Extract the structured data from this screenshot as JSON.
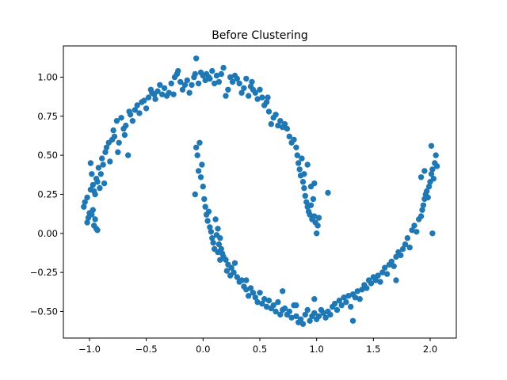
{
  "chart_data": {
    "type": "scatter",
    "title": "Before Clustering",
    "xlabel": "",
    "ylabel": "",
    "xlim": [
      -1.23,
      2.23
    ],
    "ylim": [
      -0.67,
      1.2
    ],
    "xticks": [
      {
        "value": -1.0,
        "label": "−1.0"
      },
      {
        "value": -0.5,
        "label": "−0.5"
      },
      {
        "value": 0.0,
        "label": "0.0"
      },
      {
        "value": 0.5,
        "label": "0.5"
      },
      {
        "value": 1.0,
        "label": "1.0"
      },
      {
        "value": 1.5,
        "label": "1.5"
      },
      {
        "value": 2.0,
        "label": "2.0"
      }
    ],
    "yticks": [
      {
        "value": -0.5,
        "label": "−0.50"
      },
      {
        "value": -0.25,
        "label": "−0.25"
      },
      {
        "value": 0.0,
        "label": "0.00"
      },
      {
        "value": 0.25,
        "label": "0.25"
      },
      {
        "value": 0.5,
        "label": "0.50"
      },
      {
        "value": 0.75,
        "label": "0.75"
      },
      {
        "value": 1.0,
        "label": "1.00"
      }
    ],
    "grid": false,
    "marker_color": "#1f77b4",
    "points": [
      [
        -1.05,
        0.17
      ],
      [
        -1.04,
        0.2
      ],
      [
        -1.02,
        0.23
      ],
      [
        -1.02,
        0.07
      ],
      [
        -1.01,
        0.1
      ],
      [
        -1.0,
        0.13
      ],
      [
        -0.99,
        0.28
      ],
      [
        -0.98,
        0.12
      ],
      [
        -0.97,
        0.15
      ],
      [
        -0.97,
        0.31
      ],
      [
        -0.96,
        0.27
      ],
      [
        -0.96,
        0.05
      ],
      [
        -0.95,
        0.09
      ],
      [
        -0.94,
        0.03
      ],
      [
        -0.93,
        0.02
      ],
      [
        -0.95,
        0.25
      ],
      [
        -0.98,
        0.38
      ],
      [
        -0.99,
        0.45
      ],
      [
        -0.94,
        0.35
      ],
      [
        -0.93,
        0.33
      ],
      [
        -0.92,
        0.42
      ],
      [
        -0.91,
        0.29
      ],
      [
        -0.9,
        0.38
      ],
      [
        -0.89,
        0.48
      ],
      [
        -0.88,
        0.44
      ],
      [
        -0.87,
        0.32
      ],
      [
        -0.86,
        0.52
      ],
      [
        -0.85,
        0.55
      ],
      [
        -0.83,
        0.58
      ],
      [
        -0.82,
        0.46
      ],
      [
        -0.8,
        0.6
      ],
      [
        -0.79,
        0.66
      ],
      [
        -0.78,
        0.62
      ],
      [
        -0.76,
        0.72
      ],
      [
        -0.75,
        0.52
      ],
      [
        -0.74,
        0.58
      ],
      [
        -0.72,
        0.74
      ],
      [
        -0.7,
        0.67
      ],
      [
        -0.69,
        0.63
      ],
      [
        -0.68,
        0.69
      ],
      [
        -0.66,
        0.5
      ],
      [
        -0.65,
        0.78
      ],
      [
        -0.64,
        0.76
      ],
      [
        -0.62,
        0.72
      ],
      [
        -0.6,
        0.79
      ],
      [
        -0.58,
        0.82
      ],
      [
        -0.56,
        0.77
      ],
      [
        -0.54,
        0.84
      ],
      [
        -0.52,
        0.85
      ],
      [
        -0.5,
        0.8
      ],
      [
        -0.48,
        0.87
      ],
      [
        -0.46,
        0.92
      ],
      [
        -0.45,
        0.9
      ],
      [
        -0.43,
        0.89
      ],
      [
        -0.42,
        0.86
      ],
      [
        -0.4,
        0.91
      ],
      [
        -0.38,
        0.95
      ],
      [
        -0.36,
        0.89
      ],
      [
        -0.34,
        0.93
      ],
      [
        -0.32,
        0.88
      ],
      [
        -0.3,
        0.9
      ],
      [
        -0.28,
        0.96
      ],
      [
        -0.26,
        0.89
      ],
      [
        -0.25,
        1.0
      ],
      [
        -0.23,
        1.02
      ],
      [
        -0.22,
        1.04
      ],
      [
        -0.2,
        0.97
      ],
      [
        -0.18,
        0.92
      ],
      [
        -0.16,
        0.95
      ],
      [
        -0.14,
        0.98
      ],
      [
        -0.12,
        0.9
      ],
      [
        -0.1,
        0.95
      ],
      [
        -0.08,
        1.0
      ],
      [
        -0.07,
        1.02
      ],
      [
        -0.06,
        1.12
      ],
      [
        -0.04,
        0.96
      ],
      [
        -0.02,
        1.03
      ],
      [
        0.0,
        1.01
      ],
      [
        0.02,
        0.98
      ],
      [
        0.03,
        1.02
      ],
      [
        0.05,
        1.0
      ],
      [
        0.06,
        0.99
      ],
      [
        0.08,
        1.04
      ],
      [
        0.1,
        0.96
      ],
      [
        0.12,
        1.01
      ],
      [
        0.14,
        0.97
      ],
      [
        0.16,
        1.02
      ],
      [
        0.18,
        1.06
      ],
      [
        0.2,
        0.88
      ],
      [
        0.22,
        0.92
      ],
      [
        0.24,
        1.0
      ],
      [
        0.26,
        0.97
      ],
      [
        0.28,
        1.01
      ],
      [
        0.3,
        0.99
      ],
      [
        0.32,
        0.96
      ],
      [
        0.34,
        0.9
      ],
      [
        0.36,
        0.93
      ],
      [
        0.38,
        0.99
      ],
      [
        0.4,
        0.88
      ],
      [
        0.42,
        0.94
      ],
      [
        0.44,
        0.92
      ],
      [
        0.46,
        0.9
      ],
      [
        0.48,
        0.86
      ],
      [
        0.5,
        0.92
      ],
      [
        0.52,
        0.87
      ],
      [
        0.54,
        0.82
      ],
      [
        0.56,
        0.84
      ],
      [
        0.58,
        0.78
      ],
      [
        0.6,
        0.7
      ],
      [
        0.62,
        0.74
      ],
      [
        0.64,
        0.76
      ],
      [
        0.66,
        0.69
      ],
      [
        0.68,
        0.72
      ],
      [
        0.7,
        0.68
      ],
      [
        0.72,
        0.7
      ],
      [
        0.74,
        0.67
      ],
      [
        0.76,
        0.62
      ],
      [
        0.78,
        0.58
      ],
      [
        0.8,
        0.6
      ],
      [
        0.82,
        0.55
      ],
      [
        0.83,
        0.5
      ],
      [
        0.84,
        0.45
      ],
      [
        0.85,
        0.41
      ],
      [
        0.86,
        0.37
      ],
      [
        0.87,
        0.48
      ],
      [
        0.88,
        0.33
      ],
      [
        0.89,
        0.29
      ],
      [
        0.9,
        0.24
      ],
      [
        0.91,
        0.2
      ],
      [
        0.92,
        0.17
      ],
      [
        0.93,
        0.14
      ],
      [
        0.94,
        0.12
      ],
      [
        0.95,
        0.18
      ],
      [
        0.96,
        0.09
      ],
      [
        0.97,
        0.22
      ],
      [
        0.98,
        0.11
      ],
      [
        0.99,
        0.07
      ],
      [
        1.0,
        0.0
      ],
      [
        1.01,
        0.05
      ],
      [
        1.02,
        0.1
      ],
      [
        0.98,
        0.32
      ],
      [
        0.95,
        0.3
      ],
      [
        0.92,
        0.44
      ],
      [
        0.89,
        0.38
      ],
      [
        1.1,
        0.26
      ],
      [
        0.57,
        0.87
      ],
      [
        0.43,
        0.97
      ],
      [
        -0.07,
        0.25
      ],
      [
        -0.06,
        0.55
      ],
      [
        -0.05,
        0.5
      ],
      [
        -0.04,
        0.4
      ],
      [
        -0.03,
        0.58
      ],
      [
        -0.02,
        0.36
      ],
      [
        -0.01,
        0.44
      ],
      [
        0.0,
        0.3
      ],
      [
        0.01,
        0.22
      ],
      [
        0.02,
        0.17
      ],
      [
        0.03,
        0.12
      ],
      [
        0.04,
        0.08
      ],
      [
        0.05,
        0.14
      ],
      [
        0.06,
        0.04
      ],
      [
        0.07,
        0.01
      ],
      [
        0.08,
        -0.03
      ],
      [
        0.09,
        -0.06
      ],
      [
        0.1,
        -0.1
      ],
      [
        0.11,
        0.09
      ],
      [
        0.12,
        -0.01
      ],
      [
        0.13,
        -0.12
      ],
      [
        0.14,
        -0.07
      ],
      [
        0.15,
        -0.03
      ],
      [
        0.16,
        -0.1
      ],
      [
        0.17,
        -0.13
      ],
      [
        0.18,
        -0.15
      ],
      [
        0.2,
        -0.17
      ],
      [
        0.22,
        -0.2
      ],
      [
        0.24,
        -0.27
      ],
      [
        0.25,
        -0.22
      ],
      [
        0.27,
        -0.25
      ],
      [
        0.28,
        -0.19
      ],
      [
        0.3,
        -0.28
      ],
      [
        0.32,
        -0.31
      ],
      [
        0.34,
        -0.3
      ],
      [
        0.36,
        -0.34
      ],
      [
        0.38,
        -0.36
      ],
      [
        0.4,
        -0.4
      ],
      [
        0.42,
        -0.35
      ],
      [
        0.44,
        -0.38
      ],
      [
        0.46,
        -0.41
      ],
      [
        0.48,
        -0.44
      ],
      [
        0.5,
        -0.38
      ],
      [
        0.52,
        -0.45
      ],
      [
        0.54,
        -0.42
      ],
      [
        0.56,
        -0.47
      ],
      [
        0.58,
        -0.43
      ],
      [
        0.6,
        -0.48
      ],
      [
        0.62,
        -0.46
      ],
      [
        0.64,
        -0.5
      ],
      [
        0.66,
        -0.44
      ],
      [
        0.68,
        -0.52
      ],
      [
        0.7,
        -0.49
      ],
      [
        0.72,
        -0.48
      ],
      [
        0.74,
        -0.52
      ],
      [
        0.76,
        -0.5
      ],
      [
        0.78,
        -0.54
      ],
      [
        0.8,
        -0.46
      ],
      [
        0.82,
        -0.53
      ],
      [
        0.84,
        -0.57
      ],
      [
        0.86,
        -0.55
      ],
      [
        0.88,
        -0.58
      ],
      [
        0.9,
        -0.52
      ],
      [
        0.92,
        -0.49
      ],
      [
        0.94,
        -0.56
      ],
      [
        0.96,
        -0.53
      ],
      [
        0.98,
        -0.51
      ],
      [
        1.0,
        -0.55
      ],
      [
        1.02,
        -0.53
      ],
      [
        1.04,
        -0.49
      ],
      [
        1.06,
        -0.51
      ],
      [
        1.08,
        -0.54
      ],
      [
        1.1,
        -0.5
      ],
      [
        1.12,
        -0.52
      ],
      [
        1.14,
        -0.47
      ],
      [
        1.16,
        -0.45
      ],
      [
        1.18,
        -0.49
      ],
      [
        1.2,
        -0.43
      ],
      [
        1.22,
        -0.46
      ],
      [
        1.24,
        -0.41
      ],
      [
        1.26,
        -0.44
      ],
      [
        1.28,
        -0.4
      ],
      [
        1.3,
        -0.47
      ],
      [
        1.32,
        -0.39
      ],
      [
        1.34,
        -0.41
      ],
      [
        1.36,
        -0.37
      ],
      [
        1.38,
        -0.42
      ],
      [
        1.4,
        -0.36
      ],
      [
        1.42,
        -0.33
      ],
      [
        1.44,
        -0.35
      ],
      [
        1.46,
        -0.3
      ],
      [
        1.48,
        -0.32
      ],
      [
        1.5,
        -0.28
      ],
      [
        1.52,
        -0.3
      ],
      [
        1.54,
        -0.27
      ],
      [
        1.56,
        -0.31
      ],
      [
        1.58,
        -0.25
      ],
      [
        1.6,
        -0.22
      ],
      [
        1.62,
        -0.26
      ],
      [
        1.64,
        -0.2
      ],
      [
        1.66,
        -0.18
      ],
      [
        1.68,
        -0.21
      ],
      [
        1.7,
        -0.15
      ],
      [
        1.72,
        -0.12
      ],
      [
        1.74,
        -0.14
      ],
      [
        1.76,
        -0.1
      ],
      [
        1.78,
        -0.07
      ],
      [
        1.8,
        -0.03
      ],
      [
        1.82,
        -0.09
      ],
      [
        1.84,
        0.02
      ],
      [
        1.86,
        0.05
      ],
      [
        1.88,
        0.01
      ],
      [
        1.9,
        0.09
      ],
      [
        1.92,
        0.11
      ],
      [
        1.93,
        0.15
      ],
      [
        1.94,
        0.18
      ],
      [
        1.95,
        0.22
      ],
      [
        1.96,
        0.25
      ],
      [
        1.97,
        0.27
      ],
      [
        1.98,
        0.23
      ],
      [
        1.99,
        0.3
      ],
      [
        2.0,
        0.33
      ],
      [
        2.01,
        0.38
      ],
      [
        2.02,
        0.41
      ],
      [
        2.03,
        0.35
      ],
      [
        2.04,
        0.45
      ],
      [
        2.05,
        0.5
      ],
      [
        2.06,
        0.43
      ],
      [
        2.01,
        0.56
      ],
      [
        1.95,
        0.4
      ],
      [
        1.92,
        0.36
      ],
      [
        2.02,
        0.0
      ],
      [
        1.7,
        -0.3
      ],
      [
        0.7,
        -0.37
      ],
      [
        1.32,
        -0.56
      ],
      [
        0.98,
        -0.42
      ],
      [
        0.82,
        -0.46
      ],
      [
        0.38,
        -0.3
      ],
      [
        0.15,
        -0.17
      ],
      [
        0.21,
        -0.24
      ],
      [
        0.13,
        0.03
      ]
    ]
  }
}
